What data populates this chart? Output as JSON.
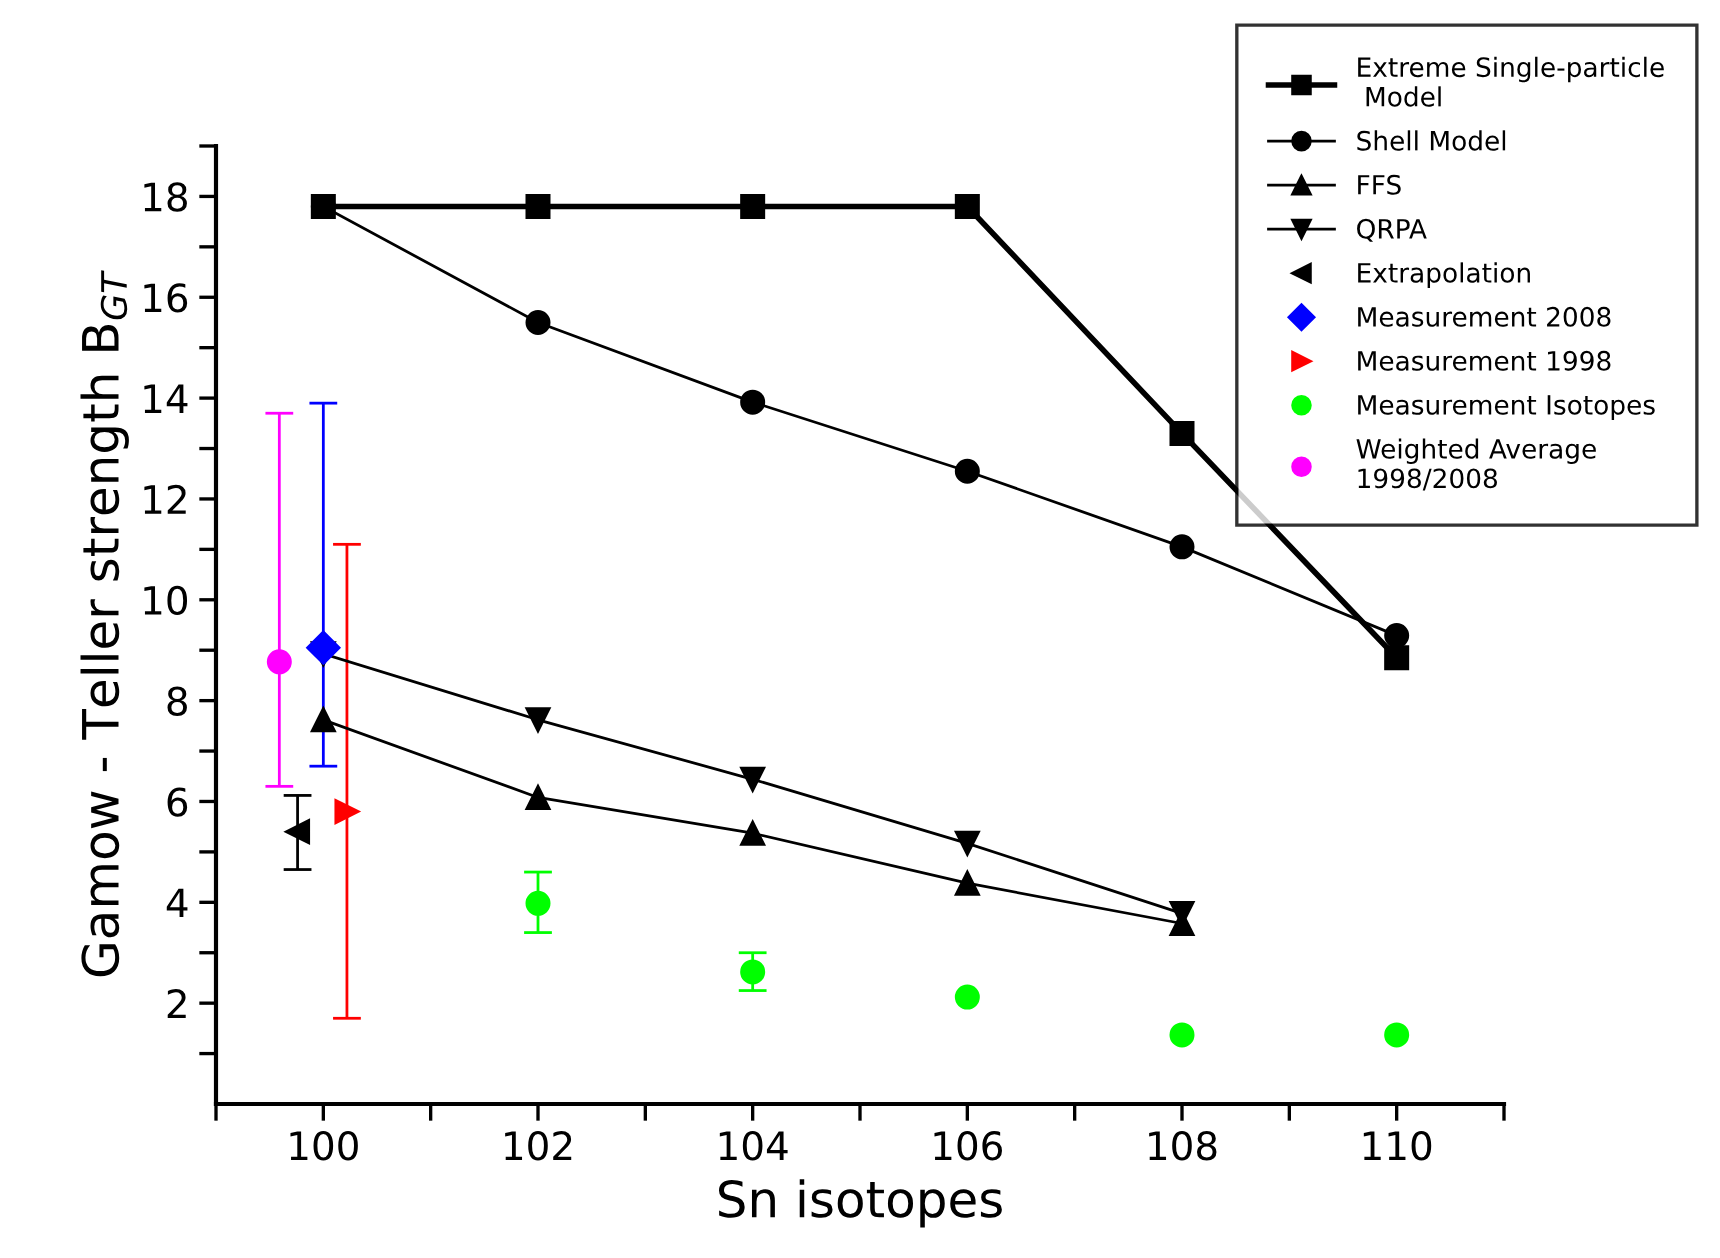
{
  "chart_data": {
    "type": "line",
    "xlabel": "Sn isotopes",
    "ylabel": "Gamow - Teller strength B$_{GT}$",
    "xlim": [
      99,
      111
    ],
    "ylim": [
      0,
      19
    ],
    "xticks": [
      {
        "value": 99,
        "label": null
      },
      100,
      {
        "value": 101,
        "label": null
      },
      102,
      {
        "value": 103,
        "label": null
      },
      104,
      {
        "value": 105,
        "label": null
      },
      106,
      {
        "value": 107,
        "label": null
      },
      108,
      {
        "value": 109,
        "label": null
      },
      110,
      {
        "value": 111,
        "label": null
      }
    ],
    "yticks": [
      {
        "value": 1,
        "label": null
      },
      2,
      {
        "value": 3,
        "label": null
      },
      4,
      {
        "value": 5,
        "label": null
      },
      6,
      {
        "value": 7,
        "label": null
      },
      8,
      {
        "value": 9,
        "label": null
      },
      10,
      {
        "value": 11,
        "label": null
      },
      12,
      {
        "value": 13,
        "label": null
      },
      14,
      {
        "value": 15,
        "label": null
      },
      16,
      {
        "value": 17,
        "label": null
      },
      18,
      {
        "value": 19,
        "label": null
      }
    ],
    "legend": "top right",
    "grid": false,
    "series": [
      {
        "name": "Extreme Single-particle\n Model",
        "marker": "square",
        "color": "#000000",
        "x": [
          100,
          102,
          104,
          106,
          108,
          110
        ],
        "values": [
          17.8,
          17.8,
          17.8,
          17.8,
          13.3,
          8.85
        ]
      },
      {
        "name": "Shell Model",
        "marker": "circle",
        "color": "#000000",
        "x": [
          100,
          102,
          104,
          106,
          108,
          110
        ],
        "values": [
          17.8,
          15.5,
          13.92,
          12.55,
          11.05,
          9.29
        ]
      },
      {
        "name": "FFS",
        "marker": "triangle",
        "color": "#000000",
        "x": [
          100,
          102,
          104,
          106,
          108
        ],
        "values": [
          7.62,
          6.08,
          5.37,
          4.38,
          3.58
        ]
      },
      {
        "name": "QRPA",
        "marker": "triangle-down",
        "color": "#000000",
        "x": [
          100,
          102,
          104,
          106,
          108
        ],
        "values": [
          8.93,
          7.62,
          6.44,
          5.17,
          3.78
        ]
      },
      {
        "name": "Extrapolation",
        "type": "scatter",
        "marker": "triangle-left",
        "color": "#000000",
        "x": [
          99.76
        ],
        "values": [
          5.4
        ],
        "errors": [
          [
            4.65,
            6.12
          ]
        ]
      },
      {
        "name": "Measurement 2008",
        "type": "scatter",
        "marker": "diamond",
        "color": "#0000ff",
        "x": [
          100
        ],
        "values": [
          9.05
        ],
        "errors": [
          [
            6.7,
            13.9
          ]
        ]
      },
      {
        "name": "Measurement 1998",
        "type": "scatter",
        "marker": "triangle-right",
        "color": "#ff0000",
        "x": [
          100.22
        ],
        "values": [
          5.8
        ],
        "errors": [
          [
            1.7,
            11.1
          ]
        ]
      },
      {
        "name": "Measurement Isotopes",
        "type": "scatter",
        "marker": "circle",
        "color": "#00ff00",
        "x": [
          102,
          104,
          106,
          108,
          110
        ],
        "values": [
          3.98,
          2.62,
          2.12,
          1.37,
          1.37
        ],
        "errors": [
          [
            3.4,
            4.6
          ],
          [
            2.25,
            3.0
          ],
          null,
          null,
          null
        ]
      },
      {
        "name": "Weighted Average\n1998/2008",
        "type": "scatter",
        "marker": "circle",
        "color": "#ff00ff",
        "x": [
          99.59
        ],
        "values": [
          8.77
        ],
        "errors": [
          [
            6.3,
            13.7
          ]
        ]
      }
    ]
  }
}
